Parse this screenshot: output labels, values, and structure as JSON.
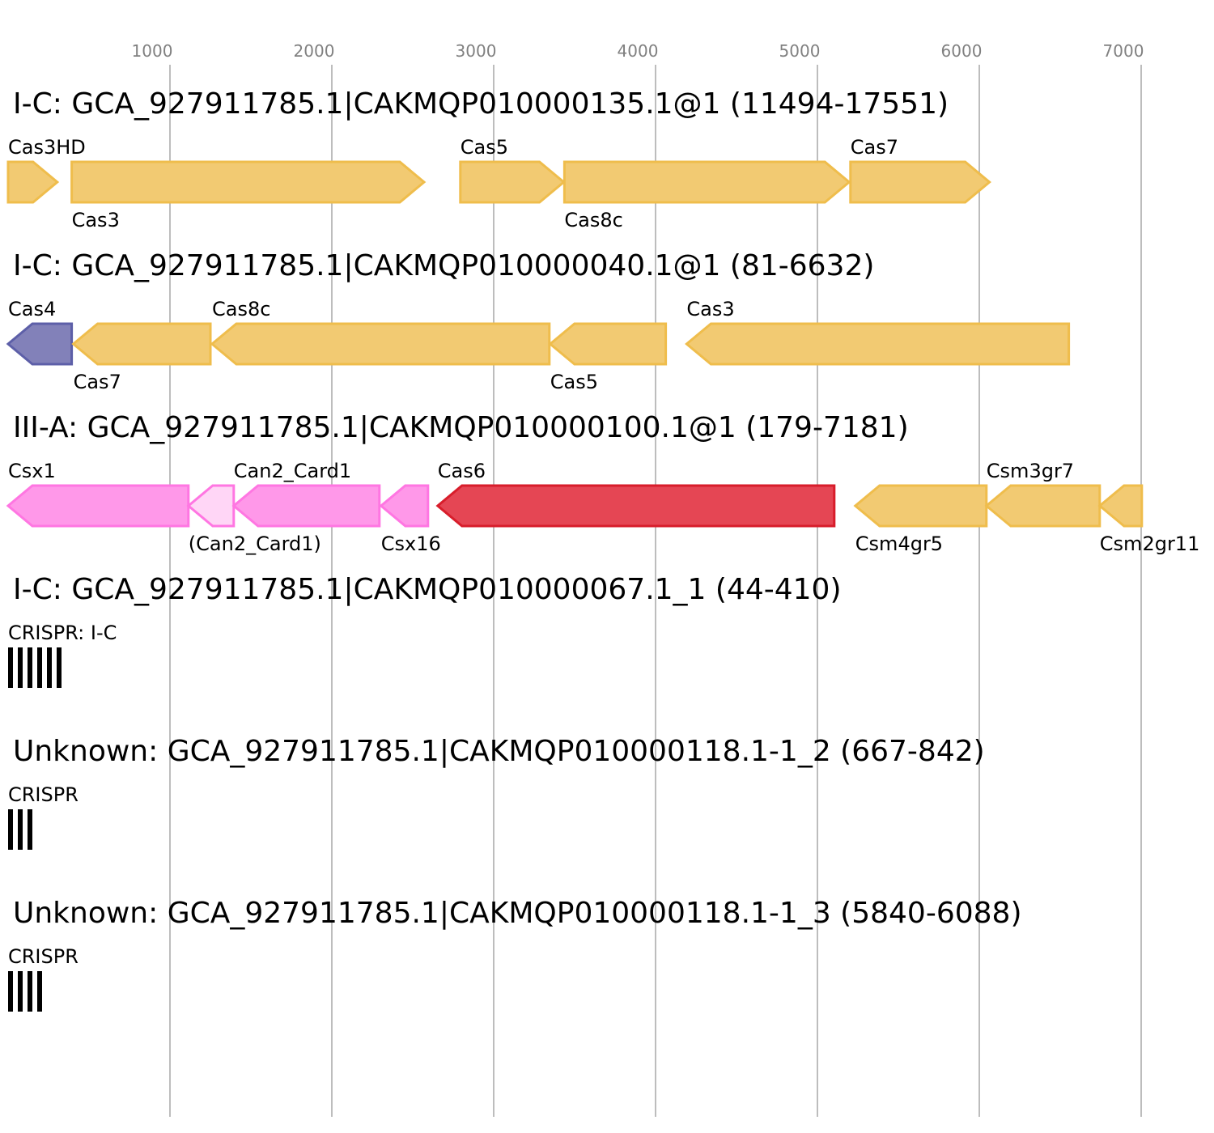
{
  "colors": {
    "cas_orange_fill": "#f2ca72",
    "cas_orange_stroke": "#efbd4c",
    "cas4_fill": "#8281b9",
    "cas4_stroke": "#5d5fa8",
    "csx_pink_fill": "#ff98e9",
    "csx_pink_stroke": "#ff76e2",
    "can_light_fill": "#ffd6f6",
    "cas6_fill": "#e54654",
    "cas6_stroke": "#d81d2b",
    "crispr_bar": "#000000",
    "grid": "#bdbdbd",
    "tick_text": "#808080"
  },
  "axis": {
    "ticks": [
      1000,
      2000,
      3000,
      4000,
      5000,
      6000,
      7000
    ],
    "labels": [
      "1000",
      "2000",
      "3000",
      "4000",
      "5000",
      "6000",
      "7000"
    ]
  },
  "tracks": [
    {
      "title": "I-C: GCA_927911785.1|CAKMQP010000135.1@1 (11494-17551)",
      "genes": [
        {
          "label": "Cas3HD",
          "start": 0,
          "end": 304,
          "strand": "+",
          "color": "orange",
          "label_pos": "top"
        },
        {
          "label": "Cas3",
          "start": 393,
          "end": 2570,
          "strand": "+",
          "color": "orange",
          "label_pos": "bottom"
        },
        {
          "label": "Cas5",
          "start": 2794,
          "end": 3433,
          "strand": "+",
          "color": "orange",
          "label_pos": "top"
        },
        {
          "label": "Cas8c",
          "start": 3437,
          "end": 5196,
          "strand": "+",
          "color": "orange",
          "label_pos": "bottom"
        },
        {
          "label": "Cas7",
          "start": 5204,
          "end": 6063,
          "strand": "+",
          "color": "orange",
          "label_pos": "top"
        }
      ]
    },
    {
      "title": "I-C: GCA_927911785.1|CAKMQP010000040.1@1 (81-6632)",
      "genes": [
        {
          "label": "Cas4",
          "start": 0,
          "end": 393,
          "strand": "-",
          "color": "cas4",
          "label_pos": "top"
        },
        {
          "label": "Cas7",
          "start": 403,
          "end": 1250,
          "strand": "-",
          "color": "orange",
          "label_pos": "bottom"
        },
        {
          "label": "Cas8c",
          "start": 1260,
          "end": 3344,
          "strand": "-",
          "color": "orange",
          "label_pos": "top"
        },
        {
          "label": "Cas5",
          "start": 3349,
          "end": 4063,
          "strand": "-",
          "color": "orange",
          "label_pos": "bottom"
        },
        {
          "label": "Cas3",
          "start": 4192,
          "end": 6553,
          "strand": "-",
          "color": "orange",
          "label_pos": "top"
        }
      ]
    },
    {
      "title": "III-A: GCA_927911785.1|CAKMQP010000100.1@1 (179-7181)",
      "genes": [
        {
          "label": "Csx1",
          "start": 0,
          "end": 1114,
          "strand": "-",
          "color": "pink",
          "label_pos": "top"
        },
        {
          "label": "(Can2_Card1)",
          "start": 1114,
          "end": 1394,
          "strand": "-",
          "color": "pinklight",
          "label_pos": "bottom"
        },
        {
          "label": "Can2_Card1",
          "start": 1394,
          "end": 2294,
          "strand": "-",
          "color": "pink",
          "label_pos": "top"
        },
        {
          "label": "Csx16",
          "start": 2304,
          "end": 2594,
          "strand": "-",
          "color": "pink",
          "label_pos": "bottom"
        },
        {
          "label": "Cas6",
          "start": 2654,
          "end": 5104,
          "strand": "-",
          "color": "red",
          "label_pos": "top"
        },
        {
          "label": "Csm4gr5",
          "start": 5234,
          "end": 6044,
          "strand": "-",
          "color": "orange",
          "label_pos": "bottom"
        },
        {
          "label": "Csm3gr7",
          "start": 6044,
          "end": 6744,
          "strand": "-",
          "color": "orange",
          "label_pos": "top"
        },
        {
          "label": "Csm2gr11",
          "start": 6744,
          "end": 7004,
          "strand": "-",
          "color": "orange",
          "label_pos": "bottom"
        }
      ]
    },
    {
      "title": "I-C: GCA_927911785.1|CAKMQP010000067.1_1 (44-410)",
      "crispr_label": "CRISPR: I-C",
      "repeats": 6
    },
    {
      "title": "Unknown: GCA_927911785.1|CAKMQP010000118.1-1_2 (667-842)",
      "crispr_label": "CRISPR",
      "repeats": 3
    },
    {
      "title": "Unknown: GCA_927911785.1|CAKMQP010000118.1-1_3 (5840-6088)",
      "crispr_label": "CRISPR",
      "repeats": 4
    }
  ]
}
